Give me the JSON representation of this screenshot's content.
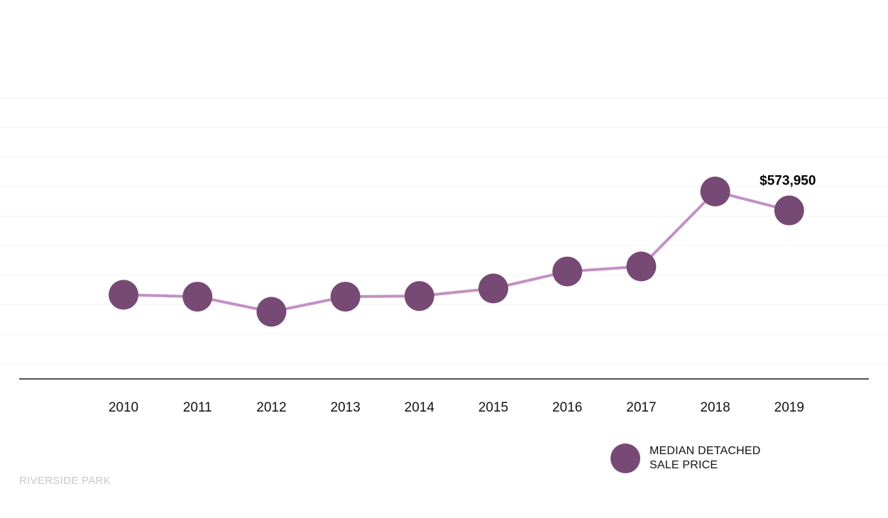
{
  "chart_data": {
    "type": "line",
    "title": "",
    "xlabel": "",
    "ylabel": "",
    "categories": [
      "2010",
      "2011",
      "2012",
      "2013",
      "2014",
      "2015",
      "2016",
      "2017",
      "2018",
      "2019"
    ],
    "series": [
      {
        "name": "MEDIAN DETACHED SALE PRICE",
        "values": [
          440000,
          437000,
          413000,
          437000,
          438000,
          450000,
          477000,
          485000,
          604000,
          573950
        ]
      }
    ],
    "annotations": [
      {
        "category": "2019",
        "text": "$573,950"
      }
    ],
    "ylim": [
      330000,
      800000
    ],
    "grid": true,
    "legend": "bottom-right"
  },
  "colors": {
    "marker": "#774a75",
    "line": "#c291c3",
    "grid": "#f3f3f3",
    "axis": "#1a1a1a",
    "text": "#111111",
    "footer": "#c8c8c8"
  },
  "legend": {
    "label": "MEDIAN DETACHED SALE PRICE"
  },
  "footer": {
    "label": "RIVERSIDE PARK"
  }
}
